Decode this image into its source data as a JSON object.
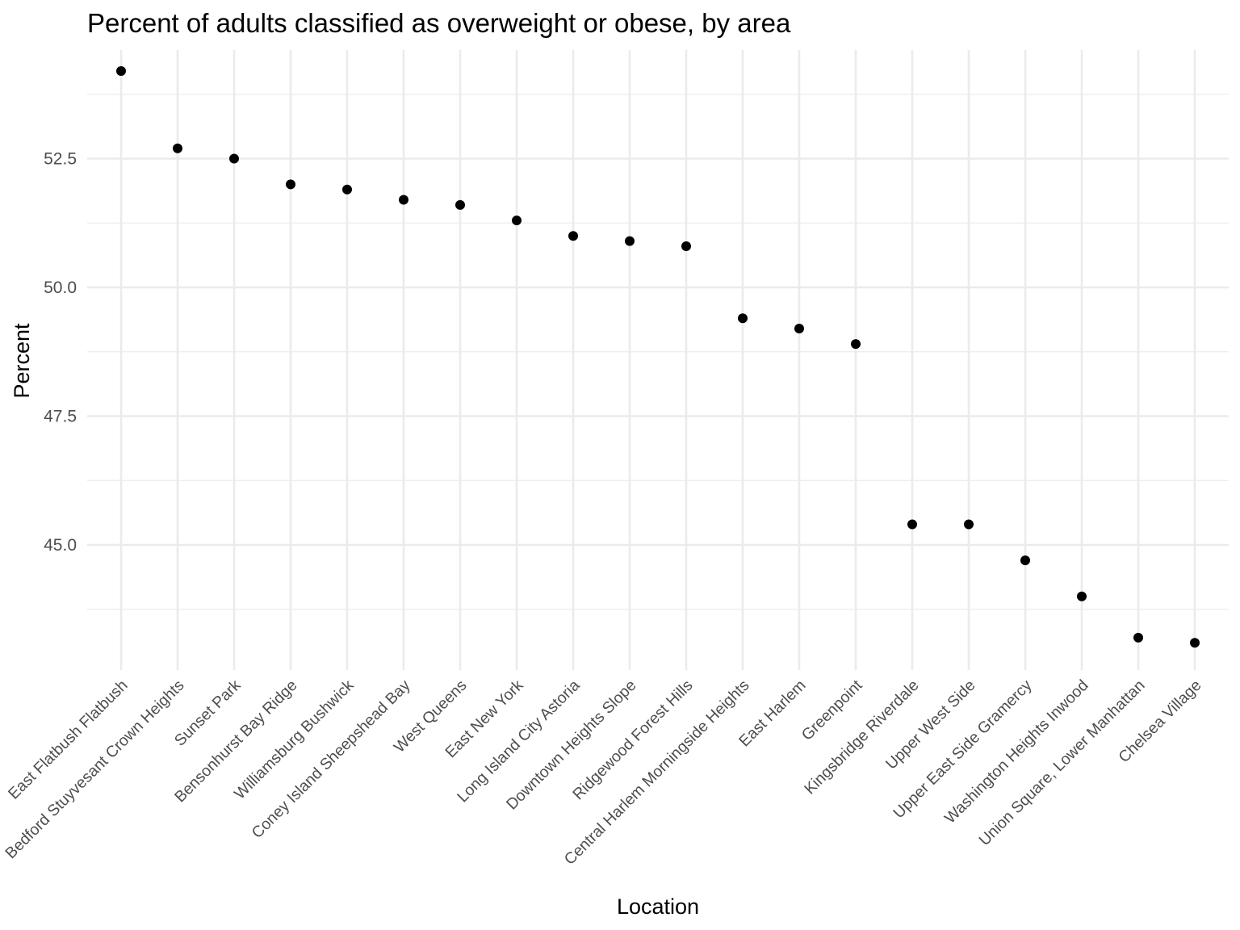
{
  "chart_data": {
    "type": "scatter",
    "title": "Percent of adults classified as overweight or obese, by area",
    "xlabel": "Location",
    "ylabel": "Percent",
    "ylim": [
      42.3,
      54.7
    ],
    "y_major_ticks": [
      45.0,
      47.5,
      50.0,
      52.5
    ],
    "y_tick_labels": [
      "45.0",
      "47.5",
      "50.0",
      "52.5"
    ],
    "y_minor_ticks": [
      43.75,
      46.25,
      48.75,
      51.25,
      53.75
    ],
    "grid": true,
    "legend": "none",
    "point_color": "#000000",
    "grid_color": "#ebebeb",
    "categories": [
      "East Flatbush Flatbush",
      "Bedford Stuyvesant Crown Heights",
      "Sunset Park",
      "Bensonhurst Bay Ridge",
      "Williamsburg Bushwick",
      "Coney Island Sheepshead Bay",
      "West Queens",
      "East New York",
      "Long Island City Astoria",
      "Downtown Heights Slope",
      "Ridgewood Forest Hills",
      "Central Harlem Morningside Heights",
      "East Harlem",
      "Greenpoint",
      "Kingsbridge Riverdale",
      "Upper West Side",
      "Upper East Side Gramercy",
      "Washington Heights Inwood",
      "Union Square, Lower Manhattan",
      "Chelsea Village"
    ],
    "values": [
      54.2,
      52.7,
      52.5,
      52.0,
      51.9,
      51.7,
      51.6,
      51.3,
      51.0,
      50.9,
      50.8,
      49.4,
      49.2,
      48.9,
      45.4,
      45.4,
      44.7,
      44.0,
      43.2,
      43.1
    ]
  }
}
